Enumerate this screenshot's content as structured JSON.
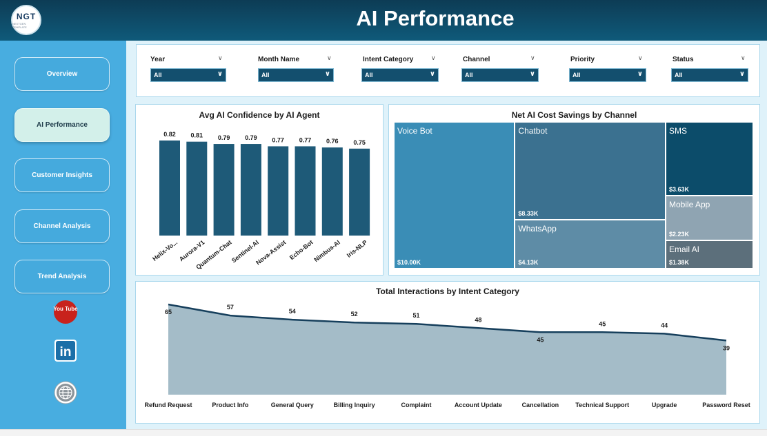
{
  "header": {
    "title": "AI Performance",
    "logo_text": "NGT",
    "logo_subtext": "NEXTGEN TEMPLATE"
  },
  "sidebar": {
    "items": [
      {
        "label": "Overview",
        "active": false
      },
      {
        "label": "AI Performance",
        "active": true
      },
      {
        "label": "Customer Insights",
        "active": false
      },
      {
        "label": "Channel Analysis",
        "active": false
      },
      {
        "label": "Trend Analysis",
        "active": false
      }
    ],
    "social": [
      {
        "icon": "youtube-icon",
        "label": "You Tube"
      },
      {
        "icon": "linkedin-icon",
        "label": "in"
      },
      {
        "icon": "globe-icon",
        "label": ""
      }
    ]
  },
  "filters": [
    {
      "label": "Year",
      "value": "All"
    },
    {
      "label": "Month Name",
      "value": "All"
    },
    {
      "label": "Intent Category",
      "value": "All"
    },
    {
      "label": "Channel",
      "value": "All"
    },
    {
      "label": "Priority",
      "value": "All"
    },
    {
      "label": "Status",
      "value": "All"
    }
  ],
  "colors": {
    "header": "#0f4c6b",
    "sidebar": "#48ade0",
    "bar": "#1e5a78",
    "area_fill": "#a4bcc8",
    "area_line": "#163f5c",
    "voice_bot": "#3a8db6",
    "chatbot": "#3b7190",
    "sms": "#0c4c6a",
    "whatsapp": "#5e8ca6",
    "mobile_app": "#8fa4b2",
    "email_ai": "#5c6f7b"
  },
  "chart_data": [
    {
      "type": "bar",
      "title": "Avg AI Confidence by AI Agent",
      "categories": [
        "Helix-Vo...",
        "Aurora-V1",
        "Quantum-Chat",
        "Sentinel-AI",
        "Nova-Assist",
        "Echo-Bot",
        "Nimbus-AI",
        "Iris-NLP"
      ],
      "values": [
        0.82,
        0.81,
        0.79,
        0.79,
        0.77,
        0.77,
        0.76,
        0.75
      ],
      "value_labels": [
        "0.82",
        "0.81",
        "0.79",
        "0.79",
        "0.77",
        "0.77",
        "0.76",
        "0.75"
      ],
      "ylim": [
        0,
        0.82
      ]
    },
    {
      "type": "treemap",
      "title": "Net AI Cost Savings by Channel",
      "items": [
        {
          "name": "Voice Bot",
          "value": 10.0,
          "label": "$10.00K"
        },
        {
          "name": "Chatbot",
          "value": 8.33,
          "label": "$8.33K"
        },
        {
          "name": "WhatsApp",
          "value": 4.13,
          "label": "$4.13K"
        },
        {
          "name": "SMS",
          "value": 3.63,
          "label": "$3.63K"
        },
        {
          "name": "Mobile App",
          "value": 2.23,
          "label": "$2.23K"
        },
        {
          "name": "Email AI",
          "value": 1.38,
          "label": "$1.38K"
        }
      ]
    },
    {
      "type": "area",
      "title": "Total Interactions by Intent Category",
      "categories": [
        "Refund Request",
        "Product Info",
        "General Query",
        "Billing Inquiry",
        "Complaint",
        "Account Update",
        "Cancellation",
        "Technical Support",
        "Upgrade",
        "Password Reset"
      ],
      "values": [
        65,
        57,
        54,
        52,
        51,
        48,
        45,
        45,
        44,
        39
      ],
      "ylim": [
        0,
        65
      ]
    }
  ]
}
